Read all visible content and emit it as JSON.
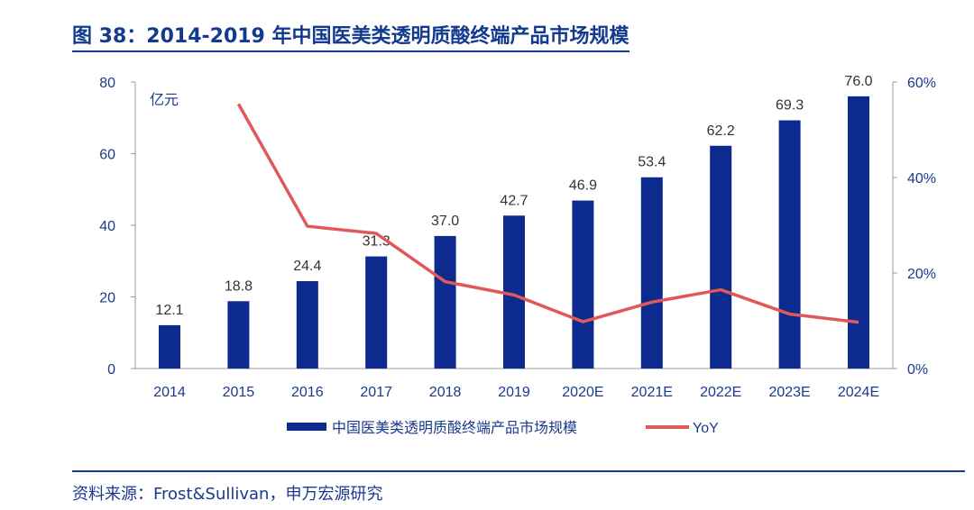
{
  "title": "图 38：2014-2019 年中国医美类透明质酸终端产品市场规模",
  "source": "资料来源：Frost&Sullivan，申万宏源研究",
  "colors": {
    "bar": "#0d2a8f",
    "line": "#e0585a",
    "text": "#1b3a8e"
  },
  "chart_data": {
    "type": "bar+line",
    "categories": [
      "2014",
      "2015",
      "2016",
      "2017",
      "2018",
      "2019",
      "2020E",
      "2021E",
      "2022E",
      "2023E",
      "2024E"
    ],
    "series": [
      {
        "name": "中国医美类透明质酸终端产品市场规模",
        "type": "bar",
        "axis": "left",
        "values": [
          12.1,
          18.8,
          24.4,
          31.3,
          37.0,
          42.7,
          46.9,
          53.4,
          62.2,
          69.3,
          76.0
        ],
        "labels": [
          "12.1",
          "18.8",
          "24.4",
          "31.3",
          "37.0",
          "42.7",
          "46.9",
          "53.4",
          "62.2",
          "69.3",
          "76.0"
        ]
      },
      {
        "name": "YoY",
        "type": "line",
        "axis": "right",
        "values": [
          null,
          55.4,
          29.8,
          28.3,
          18.2,
          15.4,
          9.8,
          13.9,
          16.5,
          11.4,
          9.7
        ]
      }
    ],
    "left_axis": {
      "unit": "亿元",
      "range": [
        0,
        80
      ],
      "ticks": [
        "0",
        "20",
        "40",
        "60",
        "80"
      ]
    },
    "right_axis": {
      "range": [
        0,
        60
      ],
      "ticks": [
        "0%",
        "20%",
        "40%",
        "60%"
      ]
    },
    "legend": "bottom"
  }
}
